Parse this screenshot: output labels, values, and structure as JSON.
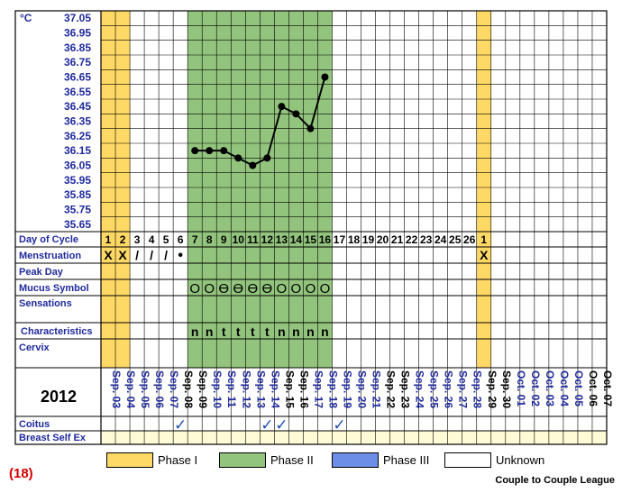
{
  "chart_data": {
    "type": "line",
    "title": "",
    "year": "2012",
    "chart_number": "(18)",
    "brand": "Couple to Couple League",
    "unit_label": "°C",
    "y_ticks": [
      "37.05",
      "36.95",
      "36.85",
      "36.75",
      "36.65",
      "36.55",
      "36.45",
      "36.35",
      "36.25",
      "36.15",
      "36.05",
      "35.95",
      "35.85",
      "35.75",
      "35.65"
    ],
    "ylim": [
      35.6,
      37.1
    ],
    "columns": 35,
    "dates": [
      "Sep. 03",
      "Sep. 04",
      "Sep. 05",
      "Sep. 06",
      "Sep. 07",
      "Sep. 08",
      "Sep. 09",
      "Sep. 10",
      "Sep. 11",
      "Sep. 12",
      "Sep. 13",
      "Sep. 14",
      "Sep. 15",
      "Sep. 16",
      "Sep. 17",
      "Sep. 18",
      "Sep. 19",
      "Sep. 20",
      "Sep. 21",
      "Sep. 22",
      "Sep. 23",
      "Sep. 24",
      "Sep. 25",
      "Sep. 26",
      "Sep. 27",
      "Sep. 28",
      "Sep. 29",
      "Sep. 30",
      "Oct. 01",
      "Oct. 02",
      "Oct. 03",
      "Oct. 04",
      "Oct. 05",
      "Oct. 06",
      "Oct. 07"
    ],
    "weekend_dates": [
      "Sep. 08",
      "Sep. 09",
      "Sep. 15",
      "Sep. 16",
      "Sep. 22",
      "Sep. 23",
      "Sep. 29",
      "Sep. 30",
      "Oct. 06",
      "Oct. 07"
    ],
    "day_of_cycle": [
      "1",
      "2",
      "3",
      "4",
      "5",
      "6",
      "7",
      "8",
      "9",
      "10",
      "11",
      "12",
      "13",
      "14",
      "15",
      "16",
      "17",
      "18",
      "19",
      "20",
      "21",
      "22",
      "23",
      "24",
      "25",
      "26",
      "1",
      "",
      "",
      "",
      "",
      "",
      "",
      "",
      ""
    ],
    "menstruation": [
      "X",
      "X",
      "/",
      "/",
      "/",
      "•",
      "",
      "",
      "",
      "",
      "",
      "",
      "",
      "",
      "",
      "",
      "",
      "",
      "",
      "",
      "",
      "",
      "",
      "",
      "",
      "",
      "X",
      "",
      "",
      "",
      "",
      "",
      "",
      "",
      ""
    ],
    "mucus_symbols": [
      "",
      "",
      "",
      "",
      "",
      "",
      "O",
      "O",
      "Ɵ",
      "Ɵ",
      "Ɵ",
      "Ɵ",
      "O",
      "O",
      "O",
      "O",
      "",
      "",
      "",
      "",
      "",
      "",
      "",
      "",
      "",
      "",
      "",
      "",
      "",
      "",
      "",
      "",
      "",
      "",
      ""
    ],
    "characteristics": [
      "",
      "",
      "",
      "",
      "",
      "",
      "n",
      "n",
      "t",
      "t",
      "t",
      "t",
      "n",
      "n",
      "n",
      "n",
      "",
      "",
      "",
      "",
      "",
      "",
      "",
      "",
      "",
      "",
      "",
      "",
      "",
      "",
      "",
      "",
      "",
      "",
      ""
    ],
    "coitus_days": [
      "Sep. 08",
      "Sep. 14",
      "Sep. 15",
      "Sep. 19"
    ],
    "series": [
      {
        "x": [
          "Sep. 09",
          "Sep. 10",
          "Sep. 11",
          "Sep. 12",
          "Sep. 13",
          "Sep. 14",
          "Sep. 15",
          "Sep. 16",
          "Sep. 17",
          "Sep. 18"
        ],
        "values": [
          36.15,
          36.15,
          36.15,
          36.1,
          36.05,
          36.1,
          36.45,
          36.4,
          36.3,
          36.65
        ]
      }
    ],
    "phase_shading": [
      {
        "phase": "Phase I",
        "from_day": 1,
        "to_day": 2,
        "color": "#ffd966"
      },
      {
        "phase": "Phase II",
        "from_day": 7,
        "to_day": 16,
        "color": "#93c47d"
      },
      {
        "phase": "Phase I",
        "from_day": 27,
        "to_day": 27,
        "color": "#ffd966"
      }
    ],
    "row_labels": {
      "day_of_cycle": "Day of Cycle",
      "menstruation": "Menstruation",
      "peak_day": "Peak Day",
      "mucus_symbol": "Mucus Symbol",
      "sensations": "Sensations",
      "characteristics": "Characteristics",
      "cervix": "Cervix",
      "coitus": "Coitus",
      "breast": "Breast Self Ex"
    },
    "legend": [
      {
        "label": "Phase I",
        "color": "#ffd966"
      },
      {
        "label": "Phase II",
        "color": "#93c47d"
      },
      {
        "label": "Phase III",
        "color": "#6d8ee6"
      },
      {
        "label": "Unknown",
        "color": "#ffffff"
      }
    ],
    "colors": {
      "line": "#000000",
      "label_blue": "#1f2a9c",
      "date_blue": "#1f2a9c",
      "weekend": "#000000",
      "check": "#1f4fb0",
      "breast_fill": "#fffbd6"
    }
  }
}
